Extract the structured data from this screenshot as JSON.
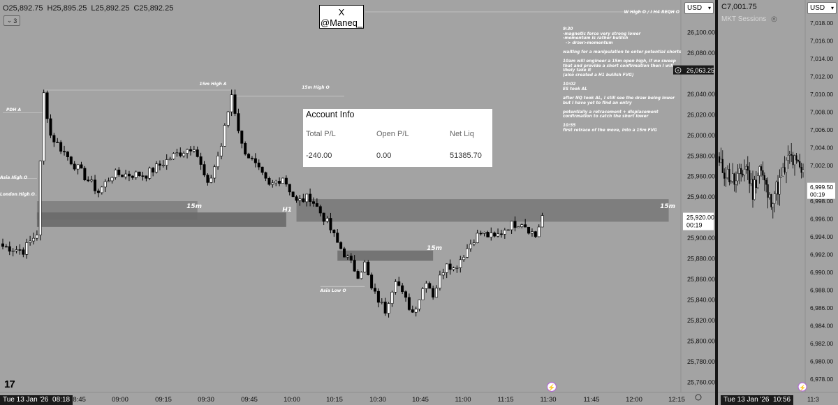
{
  "left": {
    "ohlc": {
      "open": "O25,892.75",
      "high": "H25,895.25",
      "low": "L25,892.25",
      "close": "C25,892.25"
    },
    "collapse_count": "3",
    "currency": "USD",
    "handle_line1": "X",
    "handle_line2": "@Maneq_",
    "top_level_label": "W High O / I H4 REQH O",
    "account": {
      "title": "Account Info",
      "headers": [
        "Total P/L",
        "Open P/L",
        "Net Liq"
      ],
      "values": [
        "-240.00",
        "0.00",
        "51385.70"
      ]
    },
    "notes": [
      "9:30",
      "-magnetic force very strong lower",
      "-momentum is rather bullish",
      "  -> draw>momentum",
      "",
      "waiting for a manipulation to enter potential shorts",
      "",
      "10am will engineer a 15m open high, if we sweep",
      "that and provide a short confirmation then I will",
      "likely take it",
      "(also created a H1 bullish FVG)",
      "",
      "10:02",
      "ES took AL",
      "",
      "after NQ took AL, I still see the draw being lower",
      "but I have yet to find an entry",
      "",
      "potentially a retracement + displacement",
      "confirmation to catch the short lower",
      "",
      "10:55",
      "first retrace of the move, into a 15m FVG"
    ],
    "level_labels": [
      "15m High A",
      "15m High O",
      "PDH A",
      "Asia High O",
      "London High O",
      "Asia Low O"
    ],
    "zone_labels": [
      "15m",
      "H1",
      "15m",
      "15m"
    ],
    "price_axis": [
      "26,100.00",
      "26,080.00",
      "26,040.00",
      "26,020.00",
      "26,000.00",
      "25,980.00",
      "25,960.00",
      "25,940.00",
      "25,900.00",
      "25,880.00",
      "25,860.00",
      "25,840.00",
      "25,820.00",
      "25,800.00",
      "25,780.00",
      "25,760.00"
    ],
    "marked_price": "26,063.25",
    "current_price": "25,920.00",
    "countdown": "00:19",
    "time_axis": [
      "08:45",
      "09:00",
      "09:15",
      "09:30",
      "09:45",
      "10:00",
      "10:15",
      "10:30",
      "10:45",
      "11:00",
      "11:15",
      "11:30",
      "11:45",
      "12:00",
      "12:15"
    ],
    "date_flag": "Tue 13 Jan '26",
    "date_flag_time": "08:18"
  },
  "right": {
    "close": "C7,001.75",
    "title": "MKT Sessions",
    "currency": "USD",
    "price_axis": [
      "7,018.00",
      "7,016.00",
      "7,014.00",
      "7,012.00",
      "7,010.00",
      "7,008.00",
      "7,006.00",
      "7,004.00",
      "7,002.00",
      "6,998.00",
      "6,996.00",
      "6,994.00",
      "6,992.00",
      "6,990.00",
      "6,988.00",
      "6,986.00",
      "6,984.00",
      "6,982.00",
      "6,980.00",
      "6,978.00"
    ],
    "current_price": "6,999.50",
    "countdown": "00:19",
    "date_flag": "Tue 13 Jan '26",
    "date_flag_time": "10:56",
    "time_axis_partial": "11:3"
  },
  "chart_data": [
    {
      "type": "candlestick",
      "series_name": "",
      "x_ticks": [
        "08:45",
        "09:00",
        "09:15",
        "09:30",
        "09:45",
        "10:00",
        "10:15",
        "10:30",
        "10:45",
        "11:00",
        "11:15",
        "11:30",
        "11:45",
        "12:00",
        "12:15"
      ],
      "ylim": [
        25750,
        26118
      ],
      "last_price": 25920.0,
      "anchors": [
        [
          0,
          25892
        ],
        [
          6,
          25888
        ],
        [
          10,
          25905
        ],
        [
          12,
          26040
        ],
        [
          14,
          26000
        ],
        [
          20,
          25975
        ],
        [
          28,
          25945
        ],
        [
          32,
          25962
        ],
        [
          42,
          25962
        ],
        [
          50,
          25980
        ],
        [
          56,
          25990
        ],
        [
          60,
          25950
        ],
        [
          64,
          25990
        ],
        [
          67,
          26040
        ],
        [
          70,
          25990
        ],
        [
          78,
          25950
        ],
        [
          82,
          25960
        ],
        [
          86,
          25935
        ],
        [
          90,
          25940
        ],
        [
          95,
          25915
        ],
        [
          98,
          25895
        ],
        [
          101,
          25880
        ],
        [
          104,
          25865
        ],
        [
          106,
          25875
        ],
        [
          108,
          25850
        ],
        [
          112,
          25830
        ],
        [
          115,
          25862
        ],
        [
          117,
          25845
        ],
        [
          120,
          25828
        ],
        [
          122,
          25842
        ],
        [
          124,
          25860
        ],
        [
          126,
          25845
        ],
        [
          130,
          25878
        ],
        [
          132,
          25870
        ],
        [
          138,
          25900
        ],
        [
          140,
          25905
        ],
        [
          144,
          25900
        ],
        [
          148,
          25912
        ],
        [
          152,
          25916
        ],
        [
          156,
          25902
        ],
        [
          158,
          25922
        ]
      ],
      "zones": [
        {
          "label": "",
          "from_bar": 10,
          "to_bar": 57,
          "y_top": 25936,
          "y_bottom": 25918
        },
        {
          "label": "15m",
          "from_bar": 10,
          "to_bar": 83,
          "y_top": 25925,
          "y_bottom": 25911
        },
        {
          "label": "H1",
          "from_bar": 86,
          "to_bar": 195,
          "y_top": 25938,
          "y_bottom": 25916
        },
        {
          "label": "15m",
          "from_bar": 98,
          "to_bar": 126,
          "y_top": 25888,
          "y_bottom": 25878
        }
      ]
    },
    {
      "type": "candlestick",
      "series_name": "",
      "ylim": [
        6976.5,
        7019
      ],
      "last_price": 6999.5,
      "anchors": [
        [
          0,
          7002
        ],
        [
          10,
          7000
        ],
        [
          16,
          7002
        ],
        [
          20,
          6999
        ],
        [
          24,
          7002
        ],
        [
          30,
          6998
        ],
        [
          36,
          7000
        ],
        [
          42,
          7003
        ],
        [
          46,
          7002
        ],
        [
          50,
          7001
        ],
        [
          54,
          6998
        ],
        [
          58,
          6996
        ],
        [
          62,
          6997
        ],
        [
          66,
          7002
        ],
        [
          68,
          7001
        ],
        [
          70,
          6998
        ],
        [
          74,
          6999
        ],
        [
          78,
          7002
        ],
        [
          80,
          7003
        ],
        [
          88,
          6999
        ],
        [
          94,
          7005
        ],
        [
          100,
          7000
        ],
        [
          104,
          6994
        ],
        [
          106,
          6999
        ],
        [
          110,
          7001
        ],
        [
          114,
          6999.5
        ]
      ]
    }
  ]
}
